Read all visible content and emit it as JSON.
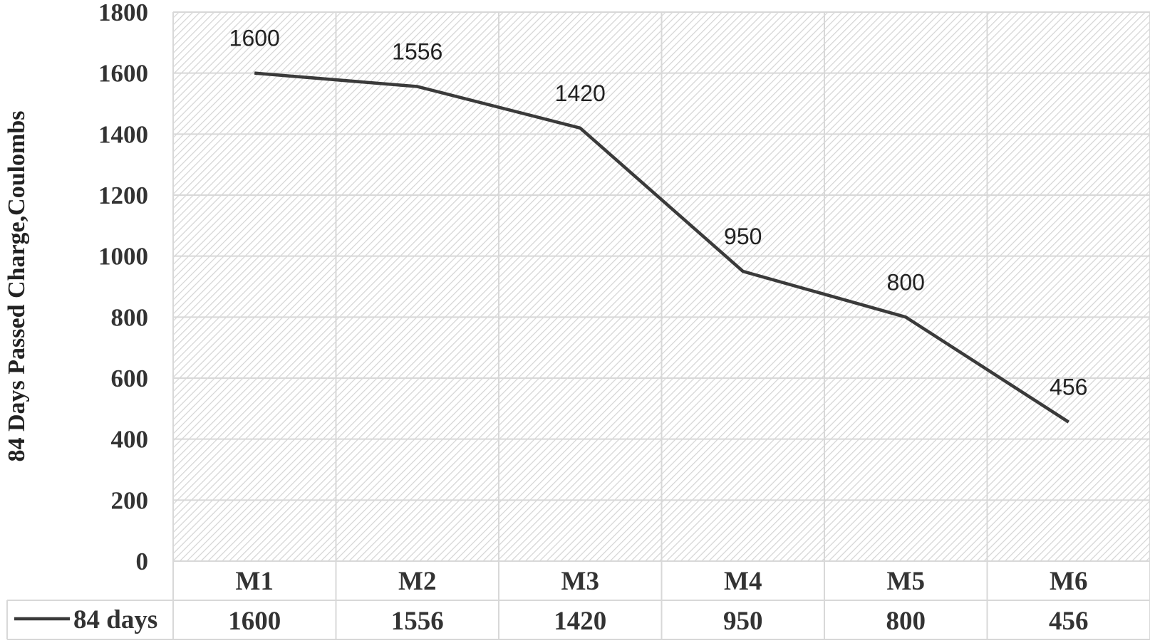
{
  "chart_data": {
    "type": "line",
    "categories": [
      "M1",
      "M2",
      "M3",
      "M4",
      "M5",
      "M6"
    ],
    "series": [
      {
        "name": "84 days",
        "values": [
          1600,
          1556,
          1420,
          950,
          800,
          456
        ]
      }
    ],
    "data_labels": [
      "1600",
      "1556",
      "1420",
      "950",
      "800",
      "456"
    ],
    "title": "",
    "xlabel": "",
    "ylabel": "84 Days Passed Charge,Coulombs",
    "ylim": [
      0,
      1800
    ],
    "yticks": [
      0,
      200,
      400,
      600,
      800,
      1000,
      1200,
      1400,
      1600,
      1800
    ],
    "grid": true,
    "data_table": true,
    "colors": {
      "line": "#3a3a3a",
      "grid": "#d8d8d8",
      "hatch": "#dcdcdc"
    }
  }
}
